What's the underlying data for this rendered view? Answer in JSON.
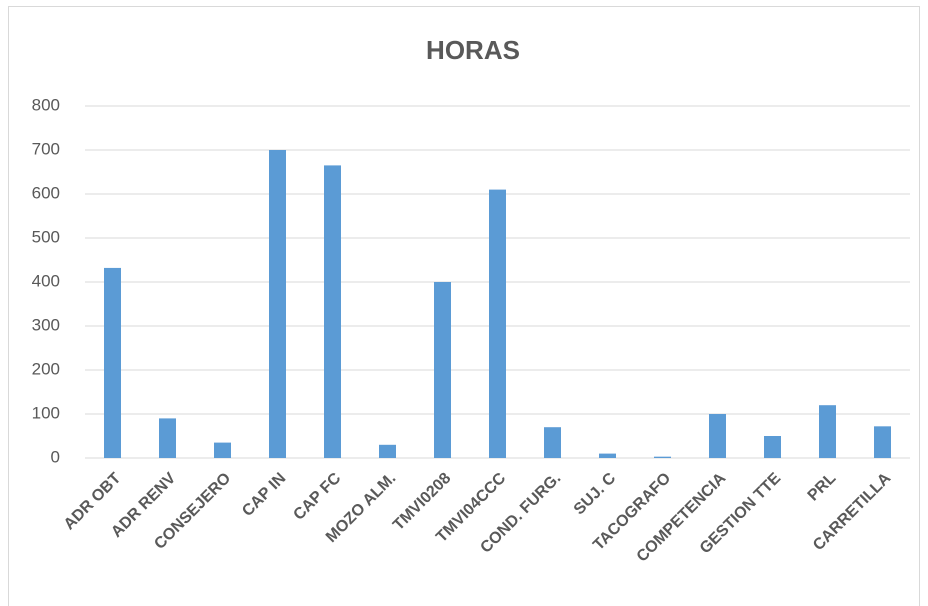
{
  "chart_data": {
    "type": "bar",
    "title": "HORAS",
    "categories": [
      "ADR OBT",
      "ADR RENV",
      "CONSEJERO",
      "CAP IN",
      "CAP FC",
      "MOZO ALM.",
      "TMVI0208",
      "TMVI04CCC",
      "COND. FURG.",
      "SUJ. C",
      "TACOGRAFO",
      "COMPETENCIA",
      "GESTION TTE",
      "PRL",
      "CARRETILLA"
    ],
    "values": [
      432,
      90,
      35,
      700,
      665,
      30,
      400,
      610,
      70,
      10,
      3,
      100,
      50,
      120,
      72
    ],
    "color": "#5b9bd5",
    "ylim": [
      0,
      800
    ],
    "yticks": [
      0,
      100,
      200,
      300,
      400,
      500,
      600,
      700,
      800
    ],
    "grid": true
  }
}
